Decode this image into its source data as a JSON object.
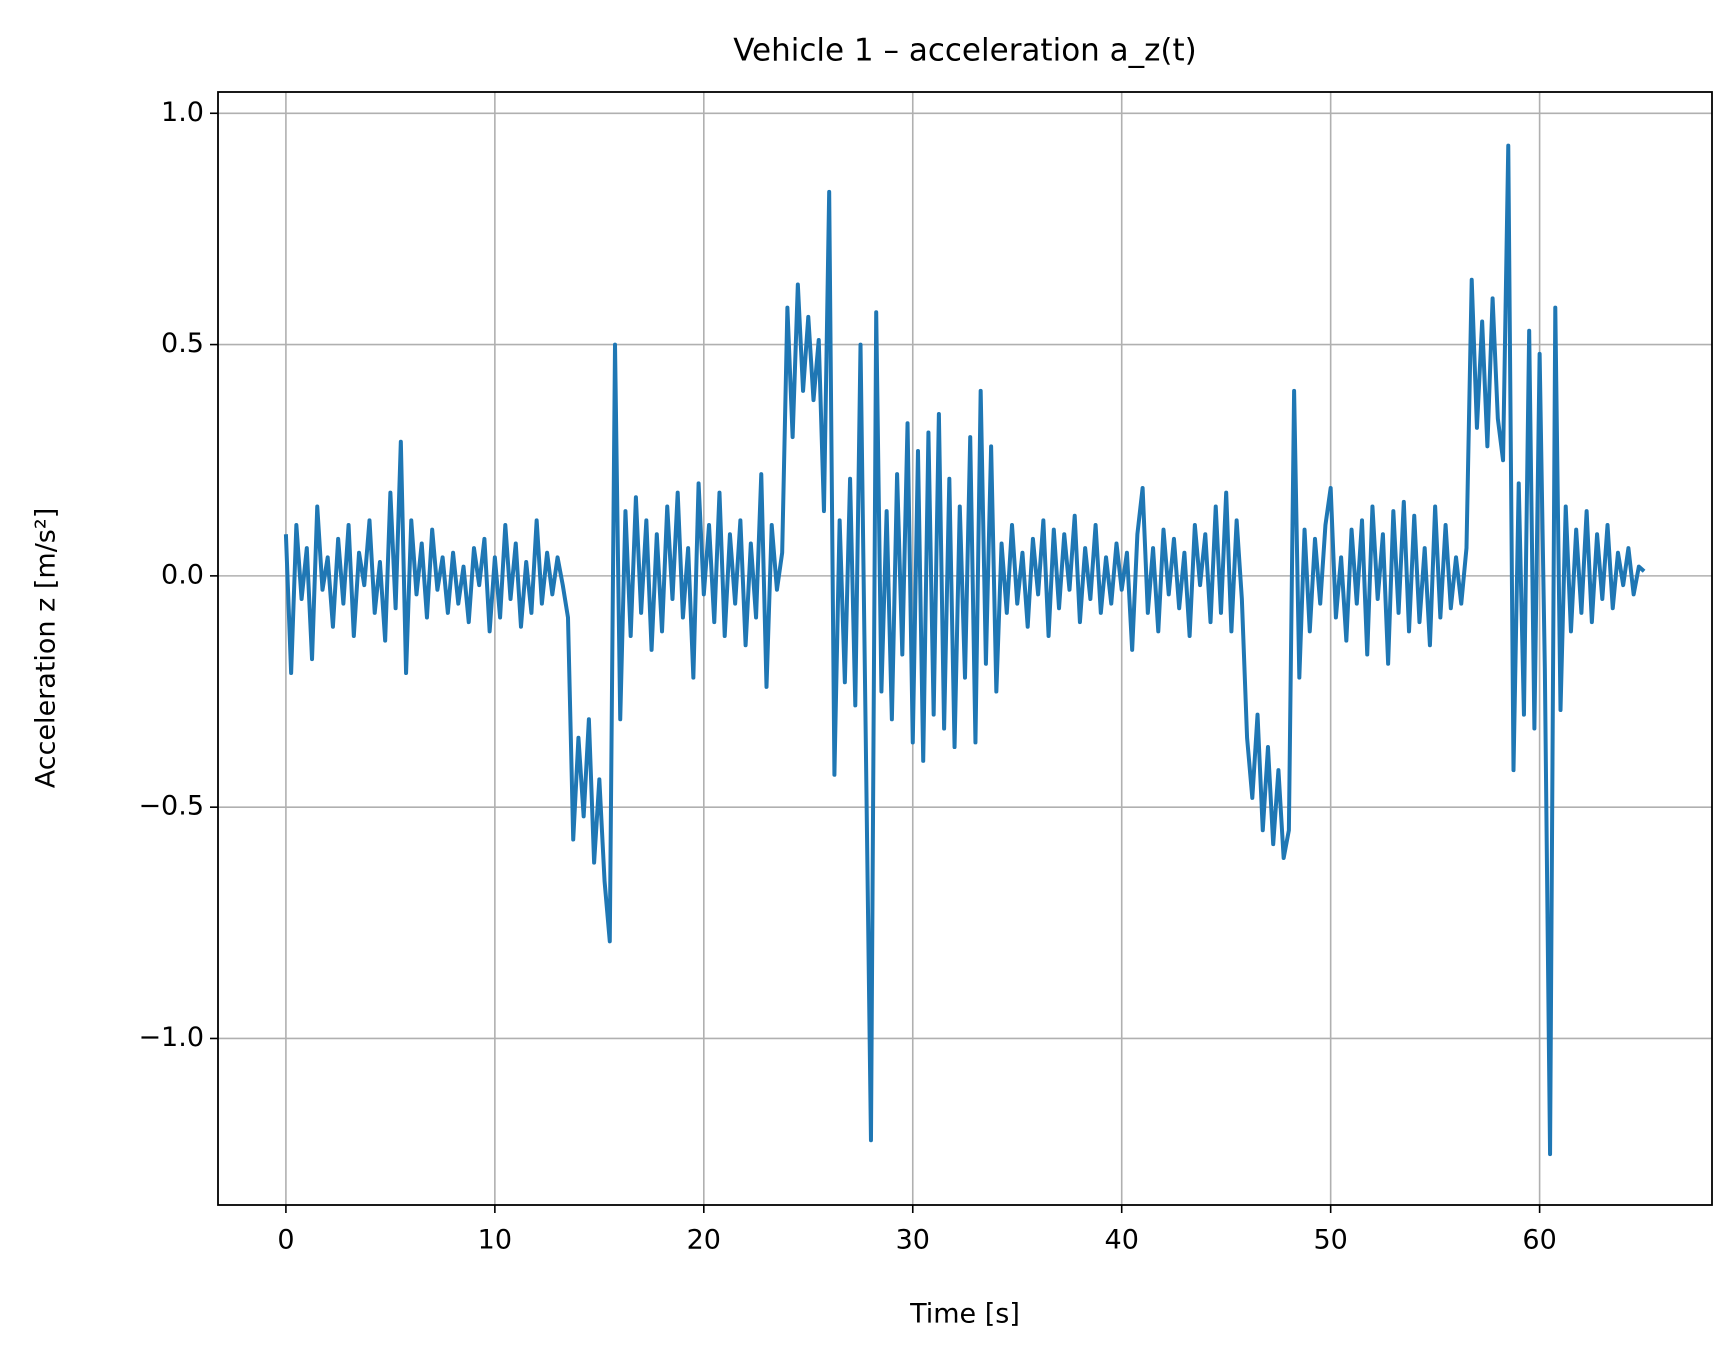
{
  "chart_data": {
    "type": "line",
    "title": "Vehicle 1 – acceleration a_z(t)",
    "x_label": "Time [s]",
    "y_label": "Acceleration z [m/s²]",
    "color": "#1f77b4",
    "grid": true,
    "xlim": [
      -3.25,
      68.25
    ],
    "ylim": [
      -1.36,
      1.046
    ],
    "xticks": [
      0,
      10,
      20,
      30,
      40,
      50,
      60
    ],
    "yticks": [
      {
        "value": -1.0,
        "label": "−1.0"
      },
      {
        "value": -0.5,
        "label": "−0.5"
      },
      {
        "value": 0.0,
        "label": "0.0"
      },
      {
        "value": 0.5,
        "label": "0.5"
      },
      {
        "value": 1.0,
        "label": "1.0"
      }
    ],
    "x": [
      0,
      0.25,
      0.5,
      0.75,
      1,
      1.25,
      1.5,
      1.75,
      2,
      2.25,
      2.5,
      2.75,
      3,
      3.25,
      3.5,
      3.75,
      4,
      4.25,
      4.5,
      4.75,
      5,
      5.25,
      5.5,
      5.75,
      6,
      6.25,
      6.5,
      6.75,
      7,
      7.25,
      7.5,
      7.75,
      8,
      8.25,
      8.5,
      8.75,
      9,
      9.25,
      9.5,
      9.75,
      10,
      10.25,
      10.5,
      10.75,
      11,
      11.25,
      11.5,
      11.75,
      12,
      12.25,
      12.5,
      12.75,
      13,
      13.25,
      13.5,
      13.75,
      14,
      14.25,
      14.5,
      14.75,
      15,
      15.25,
      15.5,
      15.75,
      16,
      16.25,
      16.5,
      16.75,
      17,
      17.25,
      17.5,
      17.75,
      18,
      18.25,
      18.5,
      18.75,
      19,
      19.25,
      19.5,
      19.75,
      20,
      20.25,
      20.5,
      20.75,
      21,
      21.25,
      21.5,
      21.75,
      22,
      22.25,
      22.5,
      22.75,
      23,
      23.25,
      23.5,
      23.75,
      24,
      24.25,
      24.5,
      24.75,
      25,
      25.25,
      25.5,
      25.75,
      26,
      26.25,
      26.5,
      26.75,
      27,
      27.25,
      27.5,
      27.75,
      28,
      28.25,
      28.5,
      28.75,
      29,
      29.25,
      29.5,
      29.75,
      30,
      30.25,
      30.5,
      30.75,
      31,
      31.25,
      31.5,
      31.75,
      32,
      32.25,
      32.5,
      32.75,
      33,
      33.25,
      33.5,
      33.75,
      34,
      34.25,
      34.5,
      34.75,
      35,
      35.25,
      35.5,
      35.75,
      36,
      36.25,
      36.5,
      36.75,
      37,
      37.25,
      37.5,
      37.75,
      38,
      38.25,
      38.5,
      38.75,
      39,
      39.25,
      39.5,
      39.75,
      40,
      40.25,
      40.5,
      40.75,
      41,
      41.25,
      41.5,
      41.75,
      42,
      42.25,
      42.5,
      42.75,
      43,
      43.25,
      43.5,
      43.75,
      44,
      44.25,
      44.5,
      44.75,
      45,
      45.25,
      45.5,
      45.75,
      46,
      46.25,
      46.5,
      46.75,
      47,
      47.25,
      47.5,
      47.75,
      48,
      48.25,
      48.5,
      48.75,
      49,
      49.25,
      49.5,
      49.75,
      50,
      50.25,
      50.5,
      50.75,
      51,
      51.25,
      51.5,
      51.75,
      52,
      52.25,
      52.5,
      52.75,
      53,
      53.25,
      53.5,
      53.75,
      54,
      54.25,
      54.5,
      54.75,
      55,
      55.25,
      55.5,
      55.75,
      56,
      56.25,
      56.5,
      56.75,
      57,
      57.25,
      57.5,
      57.75,
      58,
      58.25,
      58.5,
      58.75,
      59,
      59.25,
      59.5,
      59.75,
      60,
      60.25,
      60.5,
      60.75,
      61,
      61.25,
      61.5,
      61.75,
      62,
      62.25,
      62.5,
      62.75,
      63,
      63.25,
      63.5,
      63.75,
      64,
      64.25,
      64.5,
      64.75,
      65
    ],
    "values": [
      0.09,
      -0.21,
      0.11,
      -0.05,
      0.06,
      -0.18,
      0.15,
      -0.03,
      0.04,
      -0.11,
      0.08,
      -0.06,
      0.11,
      -0.13,
      0.05,
      -0.02,
      0.12,
      -0.08,
      0.03,
      -0.14,
      0.18,
      -0.07,
      0.29,
      -0.21,
      0.12,
      -0.04,
      0.07,
      -0.09,
      0.1,
      -0.03,
      0.04,
      -0.08,
      0.05,
      -0.06,
      0.02,
      -0.1,
      0.06,
      -0.02,
      0.08,
      -0.12,
      0.04,
      -0.09,
      0.11,
      -0.05,
      0.07,
      -0.11,
      0.03,
      -0.08,
      0.12,
      -0.06,
      0.05,
      -0.04,
      0.04,
      -0.02,
      -0.09,
      -0.57,
      -0.35,
      -0.52,
      -0.31,
      -0.62,
      -0.44,
      -0.66,
      -0.79,
      0.5,
      -0.31,
      0.14,
      -0.13,
      0.17,
      -0.08,
      0.12,
      -0.16,
      0.09,
      -0.12,
      0.15,
      -0.05,
      0.18,
      -0.09,
      0.06,
      -0.22,
      0.2,
      -0.04,
      0.11,
      -0.1,
      0.18,
      -0.13,
      0.09,
      -0.06,
      0.12,
      -0.15,
      0.07,
      -0.09,
      0.22,
      -0.24,
      0.11,
      -0.03,
      0.05,
      0.58,
      0.3,
      0.63,
      0.4,
      0.56,
      0.38,
      0.51,
      0.14,
      0.83,
      -0.43,
      0.12,
      -0.23,
      0.21,
      -0.28,
      0.5,
      -0.35,
      -1.22,
      0.57,
      -0.25,
      0.14,
      -0.31,
      0.22,
      -0.17,
      0.33,
      -0.36,
      0.27,
      -0.4,
      0.31,
      -0.3,
      0.35,
      -0.33,
      0.21,
      -0.37,
      0.15,
      -0.22,
      0.3,
      -0.36,
      0.4,
      -0.19,
      0.28,
      -0.25,
      0.07,
      -0.08,
      0.11,
      -0.06,
      0.05,
      -0.11,
      0.08,
      -0.04,
      0.12,
      -0.13,
      0.1,
      -0.07,
      0.09,
      -0.03,
      0.13,
      -0.1,
      0.06,
      -0.05,
      0.11,
      -0.08,
      0.04,
      -0.06,
      0.07,
      -0.03,
      0.05,
      -0.16,
      0.09,
      0.19,
      -0.08,
      0.06,
      -0.12,
      0.1,
      -0.04,
      0.08,
      -0.07,
      0.05,
      -0.13,
      0.11,
      -0.02,
      0.09,
      -0.1,
      0.15,
      -0.08,
      0.18,
      -0.12,
      0.12,
      -0.05,
      -0.35,
      -0.48,
      -0.3,
      -0.55,
      -0.37,
      -0.58,
      -0.42,
      -0.61,
      -0.55,
      0.4,
      -0.22,
      0.1,
      -0.12,
      0.08,
      -0.06,
      0.11,
      0.19,
      -0.09,
      0.04,
      -0.14,
      0.1,
      -0.06,
      0.12,
      -0.17,
      0.15,
      -0.05,
      0.09,
      -0.19,
      0.14,
      -0.08,
      0.16,
      -0.12,
      0.13,
      -0.1,
      0.06,
      -0.15,
      0.15,
      -0.09,
      0.11,
      -0.07,
      0.04,
      -0.06,
      0.06,
      0.64,
      0.32,
      0.55,
      0.28,
      0.6,
      0.34,
      0.25,
      0.93,
      -0.42,
      0.2,
      -0.3,
      0.53,
      -0.33,
      0.48,
      -0.2,
      -1.25,
      0.58,
      -0.29,
      0.15,
      -0.12,
      0.1,
      -0.08,
      0.14,
      -0.1,
      0.09,
      -0.05,
      0.11,
      -0.07,
      0.05,
      -0.02,
      0.06,
      -0.04,
      0.02,
      0.01
    ]
  }
}
